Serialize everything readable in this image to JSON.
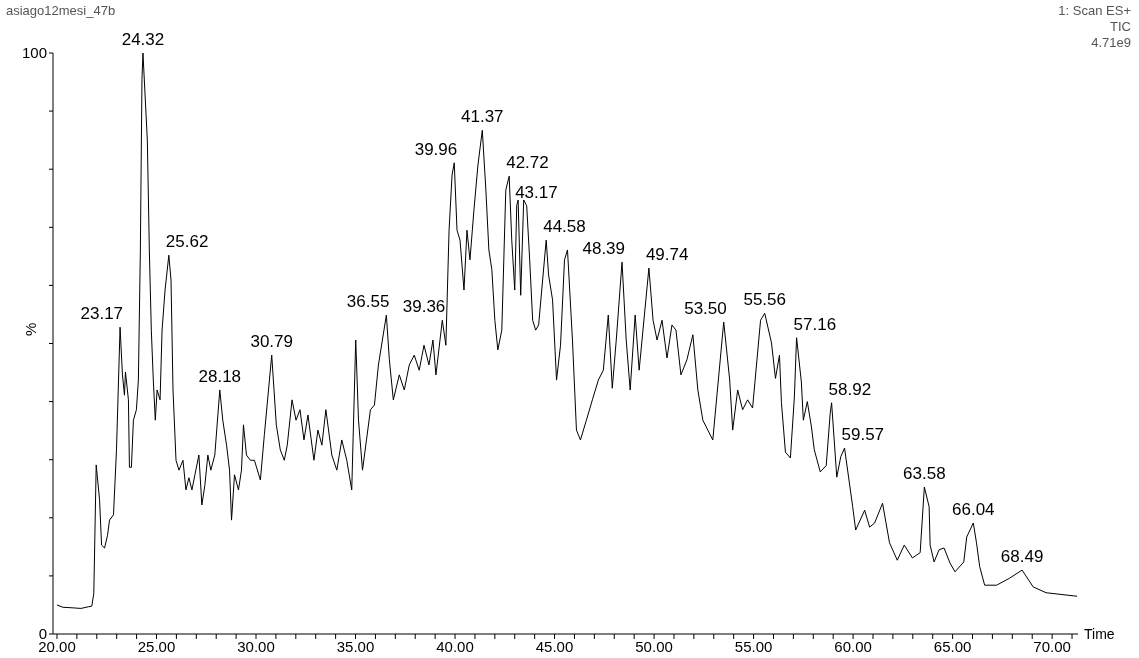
{
  "chart_data": {
    "type": "line",
    "title": "asiago12mesi_47b",
    "xlabel": "Time",
    "ylabel": "%",
    "annotations": [
      "1: Scan ES+",
      "TIC",
      "4.71e9",
      {
        "text": "23.17",
        "x": 23.17,
        "y": 52.8
      },
      {
        "text": "24.32",
        "x": 24.32,
        "y": 100
      },
      {
        "text": "25.62",
        "x": 25.62,
        "y": 65.2
      },
      {
        "text": "28.18",
        "x": 28.18,
        "y": 42.0
      },
      {
        "text": "30.79",
        "x": 30.79,
        "y": 48.0
      },
      {
        "text": "36.55",
        "x": 36.55,
        "y": 54.9
      },
      {
        "text": "39.36",
        "x": 39.36,
        "y": 54.0
      },
      {
        "text": "39.96",
        "x": 39.96,
        "y": 81.1
      },
      {
        "text": "41.37",
        "x": 41.37,
        "y": 86.7
      },
      {
        "text": "42.72",
        "x": 42.72,
        "y": 78.8
      },
      {
        "text": "43.17",
        "x": 43.17,
        "y": 73.7
      },
      {
        "text": "44.58",
        "x": 44.58,
        "y": 67.8
      },
      {
        "text": "48.39",
        "x": 48.39,
        "y": 64.0
      },
      {
        "text": "49.74",
        "x": 49.74,
        "y": 63.0
      },
      {
        "text": "53.50",
        "x": 53.5,
        "y": 53.7
      },
      {
        "text": "55.56",
        "x": 55.56,
        "y": 55.2
      },
      {
        "text": "57.16",
        "x": 57.16,
        "y": 51.0
      },
      {
        "text": "58.92",
        "x": 58.92,
        "y": 39.8
      },
      {
        "text": "59.57",
        "x": 59.57,
        "y": 32.0
      },
      {
        "text": "63.58",
        "x": 63.58,
        "y": 25.3
      },
      {
        "text": "66.04",
        "x": 66.04,
        "y": 19.1
      },
      {
        "text": "68.49",
        "x": 68.49,
        "y": 11.0
      }
    ],
    "x": [
      20.0,
      20.3,
      20.8,
      21.2,
      21.6,
      21.75,
      21.85,
      21.97,
      22.14,
      22.24,
      22.39,
      22.54,
      22.64,
      22.84,
      22.99,
      23.17,
      23.29,
      23.39,
      23.44,
      23.59,
      23.64,
      23.74,
      23.84,
      23.99,
      24.09,
      24.19,
      24.27,
      24.32,
      24.54,
      24.64,
      24.74,
      24.84,
      24.94,
      25.03,
      25.18,
      25.28,
      25.43,
      25.62,
      25.73,
      25.83,
      25.98,
      26.13,
      26.33,
      26.48,
      26.63,
      26.78,
      26.93,
      27.13,
      27.28,
      27.43,
      27.58,
      27.73,
      27.93,
      28.18,
      28.33,
      28.52,
      28.67,
      28.77,
      28.92,
      29.12,
      29.27,
      29.37,
      29.52,
      29.72,
      29.92,
      30.22,
      30.42,
      30.79,
      31.02,
      31.22,
      31.42,
      31.57,
      31.81,
      32.01,
      32.21,
      32.41,
      32.61,
      32.91,
      33.11,
      33.31,
      33.51,
      33.81,
      34.06,
      34.31,
      34.56,
      34.81,
      35.01,
      35.15,
      35.35,
      35.55,
      35.75,
      35.95,
      36.15,
      36.55,
      36.7,
      36.9,
      37.2,
      37.45,
      37.7,
      37.95,
      38.2,
      38.44,
      38.69,
      38.89,
      39.04,
      39.36,
      39.54,
      39.7,
      39.85,
      39.96,
      40.1,
      40.25,
      40.45,
      40.6,
      40.75,
      40.95,
      41.15,
      41.37,
      41.55,
      41.7,
      41.85,
      42.0,
      42.15,
      42.35,
      42.55,
      42.72,
      42.85,
      43.0,
      43.1,
      43.17,
      43.3,
      43.45,
      43.6,
      43.75,
      43.9,
      44.05,
      44.2,
      44.58,
      44.7,
      44.9,
      45.1,
      45.3,
      45.5,
      45.65,
      45.9,
      46.1,
      46.3,
      46.6,
      46.9,
      47.2,
      47.45,
      47.7,
      47.9,
      48.1,
      48.39,
      48.6,
      48.8,
      49.05,
      49.25,
      49.74,
      49.95,
      50.15,
      50.4,
      50.65,
      50.9,
      51.1,
      51.35,
      51.65,
      51.95,
      52.2,
      52.45,
      52.7,
      52.95,
      53.5,
      53.8,
      53.95,
      54.2,
      54.45,
      54.7,
      54.95,
      55.35,
      55.56,
      55.9,
      56.1,
      56.3,
      56.4,
      56.6,
      56.85,
      57.05,
      57.16,
      57.4,
      57.5,
      57.7,
      57.9,
      58.05,
      58.35,
      58.65,
      58.85,
      58.92,
      59.18,
      59.38,
      59.57,
      59.98,
      60.13,
      60.58,
      60.83,
      61.08,
      61.48,
      61.83,
      62.22,
      62.57,
      62.98,
      63.37,
      63.58,
      63.82,
      63.87,
      64.07,
      64.32,
      64.57,
      64.87,
      65.12,
      65.56,
      65.71,
      66.04,
      66.2,
      66.36,
      66.61,
      67.21,
      67.86,
      68.49,
      69.05,
      69.7,
      71.25
    ],
    "values": [
      5.0,
      4.6,
      4.5,
      4.4,
      4.7,
      4.8,
      7.0,
      29.1,
      23.1,
      15.3,
      14.8,
      17.0,
      19.6,
      20.5,
      31.7,
      52.8,
      44.6,
      41.1,
      45.1,
      40.3,
      28.7,
      28.7,
      36.8,
      38.6,
      43.7,
      66.1,
      95.4,
      100,
      85.0,
      66.1,
      52.3,
      43.7,
      36.8,
      42.0,
      40.3,
      52.3,
      59.2,
      65.2,
      60.9,
      42.0,
      29.9,
      28.2,
      29.9,
      24.8,
      26.9,
      24.8,
      27.4,
      30.8,
      22.2,
      25.6,
      30.8,
      28.2,
      30.8,
      42.0,
      36.8,
      32.5,
      28.2,
      19.6,
      27.4,
      24.8,
      28.2,
      36.0,
      30.8,
      29.9,
      29.9,
      26.5,
      34.3,
      48.0,
      36.0,
      31.7,
      29.9,
      32.5,
      40.3,
      36.8,
      38.6,
      33.4,
      37.7,
      29.9,
      35.1,
      32.5,
      38.6,
      30.8,
      28.2,
      33.4,
      29.9,
      24.8,
      50.6,
      36.8,
      28.2,
      33.4,
      38.6,
      39.4,
      46.3,
      54.9,
      47.2,
      40.3,
      44.6,
      42.0,
      46.3,
      48.0,
      45.4,
      49.7,
      46.3,
      50.6,
      44.6,
      54.0,
      49.7,
      69.5,
      79.0,
      81.1,
      69.5,
      67.8,
      59.2,
      69.5,
      64.4,
      73.0,
      80.7,
      86.7,
      76.4,
      66.1,
      62.7,
      54.0,
      48.9,
      52.3,
      76.4,
      78.8,
      67.8,
      59.2,
      73.8,
      74.7,
      58.3,
      74.7,
      73.7,
      64.4,
      54.0,
      52.3,
      53.2,
      67.8,
      61.8,
      57.5,
      43.7,
      49.7,
      64.4,
      66.1,
      50.6,
      35.1,
      33.4,
      36.8,
      40.3,
      43.7,
      45.4,
      54.9,
      42.3,
      50.6,
      64.0,
      50.6,
      42.0,
      54.9,
      45.4,
      63.0,
      54.0,
      50.6,
      54.0,
      47.5,
      53.2,
      52.3,
      44.6,
      47.2,
      51.5,
      42.0,
      36.8,
      35.1,
      33.4,
      53.7,
      43.7,
      35.1,
      42.0,
      38.6,
      40.3,
      38.9,
      54.0,
      55.2,
      50.1,
      44.0,
      48.0,
      39.8,
      31.3,
      30.3,
      40.8,
      51.0,
      43.4,
      36.8,
      40.0,
      35.8,
      31.7,
      27.9,
      29.0,
      38.0,
      39.8,
      27.0,
      30.5,
      32.0,
      21.9,
      17.9,
      21.3,
      18.4,
      19.1,
      22.5,
      15.7,
      12.7,
      15.3,
      13.1,
      14.0,
      25.3,
      21.9,
      15.3,
      12.4,
      14.5,
      14.8,
      12.2,
      10.7,
      12.4,
      16.7,
      19.1,
      15.7,
      11.6,
      8.4,
      8.4,
      9.6,
      11.0,
      8.1,
      7.1,
      6.5
    ],
    "color": "#000000",
    "xlim": [
      19.8,
      71.3
    ],
    "xticks": [
      {
        "value": 20,
        "label": "20.00"
      },
      {
        "value": 21,
        "label": null
      },
      {
        "value": 22,
        "label": null
      },
      {
        "value": 23,
        "label": null
      },
      {
        "value": 24,
        "label": null
      },
      {
        "value": 25,
        "label": "25.00"
      },
      {
        "value": 26,
        "label": null
      },
      {
        "value": 27,
        "label": null
      },
      {
        "value": 28,
        "label": null
      },
      {
        "value": 29,
        "label": null
      },
      {
        "value": 30,
        "label": "30.00"
      },
      {
        "value": 31,
        "label": null
      },
      {
        "value": 32,
        "label": null
      },
      {
        "value": 33,
        "label": null
      },
      {
        "value": 34,
        "label": null
      },
      {
        "value": 35,
        "label": "35.00"
      },
      {
        "value": 36,
        "label": null
      },
      {
        "value": 37,
        "label": null
      },
      {
        "value": 38,
        "label": null
      },
      {
        "value": 39,
        "label": null
      },
      {
        "value": 40,
        "label": "40.00"
      },
      {
        "value": 41,
        "label": null
      },
      {
        "value": 42,
        "label": null
      },
      {
        "value": 43,
        "label": null
      },
      {
        "value": 44,
        "label": null
      },
      {
        "value": 45,
        "label": "45.00"
      },
      {
        "value": 46,
        "label": null
      },
      {
        "value": 47,
        "label": null
      },
      {
        "value": 48,
        "label": null
      },
      {
        "value": 49,
        "label": null
      },
      {
        "value": 50,
        "label": "50.00"
      },
      {
        "value": 51,
        "label": null
      },
      {
        "value": 52,
        "label": null
      },
      {
        "value": 53,
        "label": null
      },
      {
        "value": 54,
        "label": null
      },
      {
        "value": 55,
        "label": "55.00"
      },
      {
        "value": 56,
        "label": null
      },
      {
        "value": 57,
        "label": null
      },
      {
        "value": 58,
        "label": null
      },
      {
        "value": 59,
        "label": null
      },
      {
        "value": 60,
        "label": "60.00"
      },
      {
        "value": 61,
        "label": null
      },
      {
        "value": 62,
        "label": null
      },
      {
        "value": 63,
        "label": null
      },
      {
        "value": 64,
        "label": null
      },
      {
        "value": 65,
        "label": "65.00"
      },
      {
        "value": 66,
        "label": null
      },
      {
        "value": 67,
        "label": null
      },
      {
        "value": 68,
        "label": null
      },
      {
        "value": 69,
        "label": null
      },
      {
        "value": 70,
        "label": "70.00"
      },
      {
        "value": 71,
        "label": null
      }
    ],
    "ylim": [
      0,
      100
    ],
    "yticks": [
      0,
      {
        "value": 10,
        "label": null
      },
      {
        "value": 20,
        "label": null
      },
      {
        "value": 30,
        "label": null
      },
      {
        "value": 40,
        "label": null
      },
      {
        "value": 50,
        "label": null
      },
      {
        "value": 60,
        "label": null
      },
      {
        "value": 70,
        "label": null
      },
      {
        "value": 80,
        "label": null
      },
      {
        "value": 90,
        "label": null
      },
      100
    ],
    "grid": false,
    "legend": false,
    "marker": "none",
    "line_style": "solid"
  }
}
